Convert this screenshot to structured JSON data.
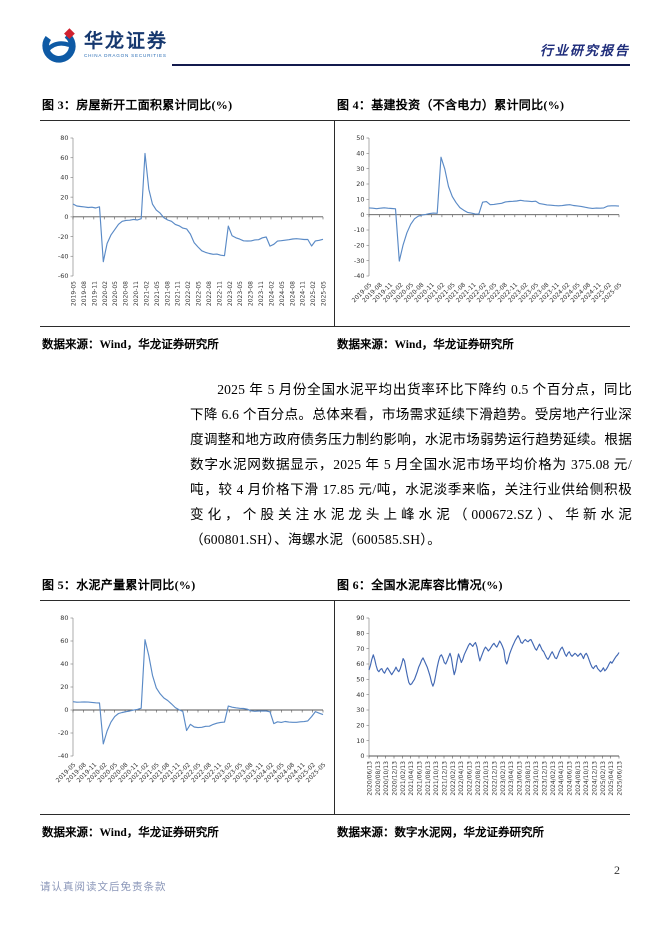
{
  "header": {
    "logo_cn": "华龙证券",
    "logo_en": "CHINA DRAGON SECURITIES",
    "doc_type": "行业研究报告"
  },
  "figures": [
    {
      "title": "图 3：房屋新开工面积累计同比(%)",
      "source": "数据来源：Wind，华龙证券研究所"
    },
    {
      "title": "图 4：基建投资（不含电力）累计同比(%)",
      "source": "数据来源：Wind，华龙证券研究所"
    },
    {
      "title": "图 5：水泥产量累计同比(%)",
      "source": "数据来源：Wind，华龙证券研究所"
    },
    {
      "title": "图 6：全国水泥库容比情况(%)",
      "source": "数据来源：数字水泥网，华龙证券研究所"
    }
  ],
  "body_paragraph": "2025 年 5 月份全国水泥平均出货率环比下降约 0.5 个百分点，同比下降 6.6 个百分点。总体来看，市场需求延续下滑趋势。受房地产行业深度调整和地方政府债务压力制约影响，水泥市场弱势运行趋势延续。根据数字水泥网数据显示，2025 年 5 月全国水泥市场平均价格为 375.08 元/吨，较 4 月价格下滑 17.85 元/吨，水泥淡季来临，关注行业供给侧积极变化，个股关注水泥龙头上峰水泥（000672.SZ）、华新水泥（600801.SH）、海螺水泥（600585.SH）。",
  "footer": {
    "disclaimer": "请认真阅读文后免责条款",
    "page_number": "2"
  },
  "colors": {
    "line_blue_light": "#5a8ac6",
    "line_blue_dark": "#4268b3",
    "header_navy": "#131a4d",
    "doc_type_blue": "#1f2d7b",
    "footer_text": "#8a96b8",
    "logo_blue": "#0e5aa5",
    "logo_red": "#d0212f"
  },
  "chart_data": [
    {
      "type": "line",
      "title": "房屋新开工面积累计同比(%)",
      "ylim": [
        -60,
        80
      ],
      "ystep": 20,
      "zero_axis": true,
      "grid": false,
      "legend": "none",
      "label_rotation": "vertical",
      "color": "#5a8ac6",
      "label_area": 48,
      "x_labels": [
        "2019-05",
        "2019-08",
        "2019-11",
        "2020-02",
        "2020-05",
        "2020-08",
        "2020-11",
        "2021-02",
        "2021-05",
        "2021-08",
        "2021-11",
        "2022-02",
        "2022-05",
        "2022-08",
        "2022-11",
        "2023-02",
        "2023-05",
        "2023-08",
        "2023-11",
        "2024-02",
        "2024-05",
        "2024-08",
        "2024-11",
        "2025-02",
        "2025-05"
      ],
      "values": [
        13.0,
        11.0,
        10.5,
        10.1,
        9.5,
        9.8,
        9.0,
        10.2,
        -45.5,
        -27.0,
        -18.5,
        -13.0,
        -7.6,
        -4.5,
        -3.6,
        -3.4,
        -2.6,
        -3.2,
        -1.9,
        64.3,
        28.2,
        12.8,
        6.9,
        3.8,
        -0.9,
        -3.2,
        -4.5,
        -7.7,
        -9.1,
        -11.4,
        -12.2,
        -17.5,
        -26.3,
        -30.6,
        -34.4,
        -36.1,
        -37.2,
        -38.0,
        -37.8,
        -38.9,
        -39.4,
        -9.4,
        -19.2,
        -21.2,
        -22.6,
        -24.3,
        -24.5,
        -24.4,
        -23.4,
        -23.2,
        -21.2,
        -20.4,
        -29.7,
        -27.8,
        -24.6,
        -24.2,
        -23.7,
        -23.2,
        -22.5,
        -22.2,
        -22.6,
        -23.0,
        -23.0,
        -29.6,
        -24.4,
        -23.8,
        -22.8
      ]
    },
    {
      "type": "line",
      "title": "基建投资（不含电力）累计同比(%)",
      "ylim": [
        -40,
        50
      ],
      "ystep": 10,
      "zero_axis": true,
      "grid": false,
      "legend": "none",
      "label_rotation": "diagonal",
      "color": "#5a8ac6",
      "label_area": 48,
      "x_labels": [
        "2019-05",
        "2019-08",
        "2019-11",
        "2020-02",
        "2020-05",
        "2020-08",
        "2020-11",
        "2021-02",
        "2021-05",
        "2021-08",
        "2021-11",
        "2022-02",
        "2022-05",
        "2022-08",
        "2022-11",
        "2023-02",
        "2023-05",
        "2023-08",
        "2023-11",
        "2024-02",
        "2024-05",
        "2024-08",
        "2024-11",
        "2025-02",
        "2025-05"
      ],
      "values": [
        4.4,
        4.2,
        3.9,
        4.2,
        4.5,
        4.2,
        4.0,
        3.8,
        -30.3,
        -19.7,
        -11.8,
        -6.3,
        -2.7,
        -1.0,
        -0.3,
        0.2,
        0.7,
        1.0,
        0.9,
        37.5,
        29.7,
        18.4,
        11.8,
        7.8,
        4.6,
        2.9,
        1.5,
        1.0,
        0.5,
        0.4,
        8.1,
        8.5,
        6.5,
        6.7,
        7.1,
        7.4,
        8.3,
        8.6,
        8.7,
        8.9,
        9.4,
        9.0,
        8.8,
        8.5,
        8.8,
        7.2,
        6.8,
        6.4,
        6.2,
        5.9,
        5.8,
        5.9,
        6.3,
        6.5,
        6.0,
        5.7,
        5.4,
        4.9,
        4.4,
        4.1,
        4.3,
        4.2,
        4.4,
        5.6,
        5.8,
        5.8,
        5.6
      ]
    },
    {
      "type": "line",
      "title": "水泥产量累计同比(%)",
      "ylim": [
        -40,
        80
      ],
      "ystep": 20,
      "zero_axis": true,
      "grid": false,
      "legend": "none",
      "label_rotation": "diagonal",
      "color": "#5a8ac6",
      "label_area": 48,
      "x_labels": [
        "2019-05",
        "2019-08",
        "2019-11",
        "2020-02",
        "2020-05",
        "2020-08",
        "2020-11",
        "2021-02",
        "2021-05",
        "2021-08",
        "2021-11",
        "2022-02",
        "2022-05",
        "2022-08",
        "2022-11",
        "2023-02",
        "2023-05",
        "2023-08",
        "2023-11",
        "2024-02",
        "2024-05",
        "2024-08",
        "2024-11",
        "2025-02",
        "2025-05"
      ],
      "values": [
        7.2,
        6.8,
        6.9,
        7.0,
        6.9,
        6.6,
        6.3,
        6.1,
        -29.5,
        -18.3,
        -10.6,
        -5.7,
        -3.0,
        -2.2,
        -1.5,
        -0.9,
        -0.1,
        0.5,
        1.6,
        61.1,
        47.3,
        30.1,
        19.2,
        14.1,
        10.4,
        8.3,
        5.3,
        2.1,
        0.2,
        -1.2,
        -17.8,
        -12.4,
        -14.8,
        -15.3,
        -15.0,
        -14.2,
        -14.1,
        -12.5,
        -11.5,
        -10.8,
        -10.5,
        3.5,
        2.4,
        1.9,
        1.5,
        1.3,
        0.7,
        -0.7,
        -1.1,
        -0.9,
        -0.8,
        -0.9,
        -1.6,
        -11.8,
        -10.3,
        -10.8,
        -10.0,
        -10.5,
        -10.7,
        -10.7,
        -10.3,
        -10.1,
        -9.5,
        -5.7,
        -1.4,
        -2.8,
        -4.0
      ]
    },
    {
      "type": "line",
      "title": "全国水泥库容比情况(%)",
      "ylim": [
        0,
        90
      ],
      "ystep": 10,
      "zero_axis": false,
      "grid": false,
      "legend": "none",
      "label_rotation": "vertical",
      "color": "#4268b3",
      "label_area": 56,
      "x_labels": [
        "2020/06/13",
        "2020/08/13",
        "2020/10/13",
        "2020/12/13",
        "2021/02/13",
        "2021/04/13",
        "2021/06/13",
        "2021/08/13",
        "2021/10/13",
        "2021/12/13",
        "2022/02/13",
        "2022/04/13",
        "2022/06/13",
        "2022/08/13",
        "2022/10/13",
        "2022/12/13",
        "2023/02/13",
        "2023/04/13",
        "2023/06/13",
        "2023/08/13",
        "2023/10/13",
        "2023/12/13",
        "2024/02/13",
        "2024/04/13",
        "2024/06/13",
        "2024/08/13",
        "2024/10/13",
        "2024/12/13",
        "2025/02/13",
        "2025/04/13",
        "2025/06/13"
      ],
      "values": [
        56,
        59,
        63,
        66,
        63,
        59,
        56,
        55,
        56.5,
        57,
        55,
        54,
        56,
        57.5,
        56,
        54.5,
        53,
        54.5,
        56,
        58,
        56,
        55,
        57,
        60,
        63.5,
        62,
        57,
        52,
        48,
        46.5,
        47,
        48.5,
        50,
        52.5,
        55,
        58,
        60,
        62.5,
        64,
        62,
        60,
        58,
        55,
        52,
        48,
        45.5,
        48,
        53,
        58,
        62,
        65,
        66,
        64,
        61,
        60,
        62,
        64.5,
        67,
        64,
        58,
        53,
        56,
        62,
        66.5,
        64,
        61,
        63,
        66,
        68,
        70,
        72,
        73.5,
        72.5,
        71.5,
        73,
        74,
        71,
        66,
        62,
        64.5,
        67,
        69.5,
        71,
        70,
        68.5,
        69.5,
        71,
        72.5,
        73.5,
        72,
        71,
        73,
        75,
        73.5,
        71.5,
        69,
        62,
        60,
        63,
        66.5,
        69,
        71.5,
        73.5,
        75.5,
        77,
        78.5,
        76.5,
        74,
        73.5,
        75,
        76,
        75,
        74.5,
        75.5,
        76,
        74,
        72,
        70,
        69,
        71,
        73,
        71,
        69,
        68,
        66,
        64,
        63,
        64.5,
        66.5,
        68,
        66,
        64,
        63.5,
        65.5,
        68,
        70,
        71,
        69,
        66.5,
        65,
        67,
        68,
        66,
        65,
        66,
        67,
        66.2,
        65,
        66,
        67,
        65.5,
        63.5,
        66,
        67,
        65,
        62.5,
        60,
        58,
        57,
        58.5,
        59,
        57,
        56,
        55,
        56,
        57.5,
        55.5,
        56.5,
        58,
        60,
        61.5,
        60.5,
        62,
        63.5,
        65,
        66,
        67.5
      ]
    }
  ]
}
